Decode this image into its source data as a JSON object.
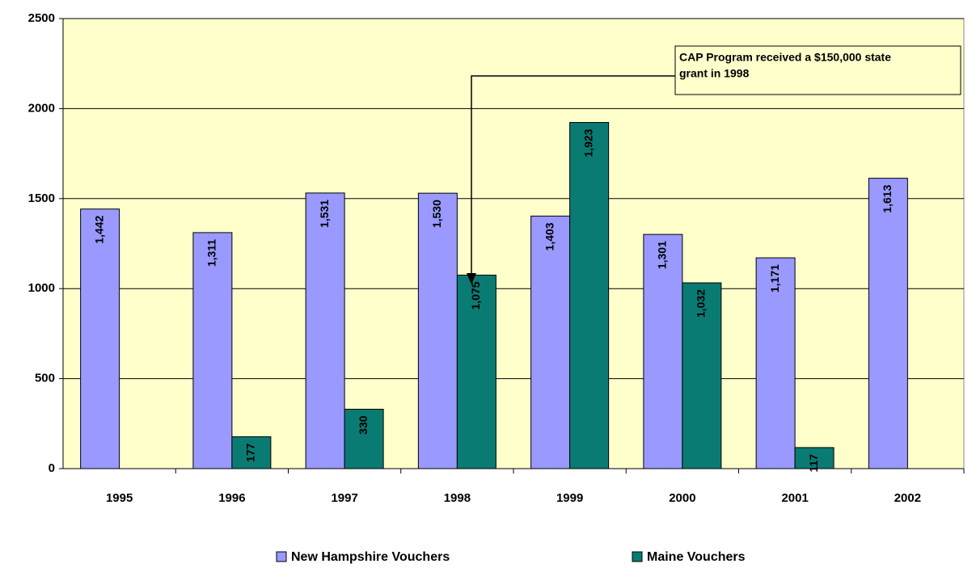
{
  "chart_data": {
    "type": "bar",
    "categories": [
      "1995",
      "1996",
      "1997",
      "1998",
      "1999",
      "2000",
      "2001",
      "2002"
    ],
    "series": [
      {
        "name": "New Hampshire Vouchers",
        "color": "#9999ff",
        "values": [
          1442,
          1311,
          1531,
          1530,
          1403,
          1301,
          1171,
          1613
        ],
        "value_labels": [
          "1,442",
          "1,311",
          "1,531",
          "1,530",
          "1,403",
          "1,301",
          "1,171",
          "1,613"
        ]
      },
      {
        "name": "Maine Vouchers",
        "color": "#0a7b73",
        "values": [
          null,
          177,
          330,
          1075,
          1923,
          1032,
          117,
          null
        ],
        "value_labels": [
          null,
          "177",
          "330",
          "1,075",
          "1,923",
          "1,032",
          "117",
          null
        ]
      }
    ],
    "ylim": [
      0,
      2500
    ],
    "yticks": [
      0,
      500,
      1000,
      1500,
      2000,
      2500
    ],
    "grid": true,
    "plot_background": "#ffffcc",
    "annotation": [
      "CAP Program received a $150,000 state",
      "grant in 1998"
    ],
    "legend": "bottom"
  }
}
